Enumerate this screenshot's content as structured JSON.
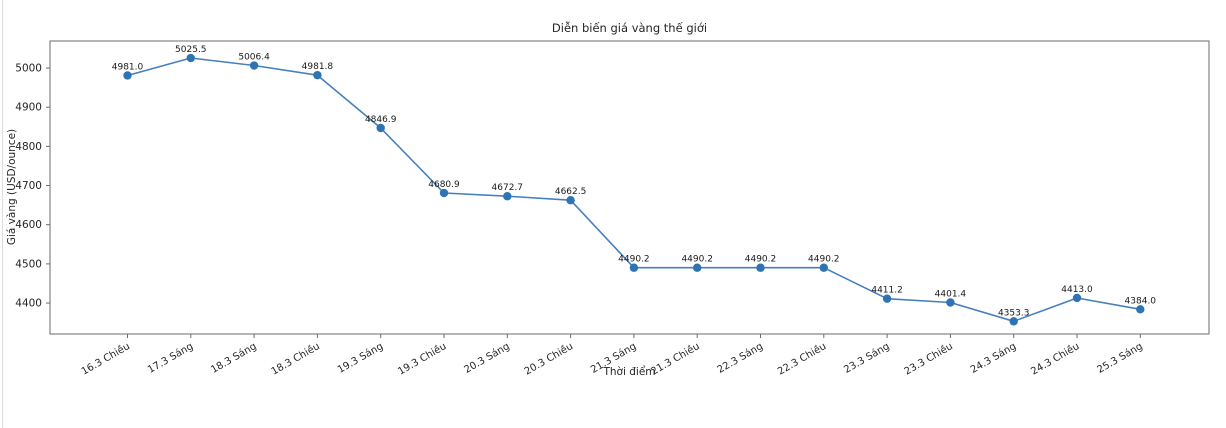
{
  "chart_data": {
    "type": "line",
    "title": "Diễn biến giá vàng thế giới",
    "xlabel": "Thời điểm",
    "ylabel": "Giá vàng (USD/ounce)",
    "categories": [
      "16.3 Chiều",
      "17.3 Sáng",
      "18.3 Sáng",
      "18.3 Chiều",
      "19.3 Sáng",
      "19.3 Chiều",
      "20.3 Sáng",
      "20.3 Chiều",
      "21.3 Sáng",
      "21.3 Chiều",
      "22.3 Sáng",
      "22.3 Chiều",
      "23.3 Sáng",
      "23.3 Chiều",
      "24.3 Sáng",
      "24.3 Chiều",
      "25.3 Sáng"
    ],
    "values": [
      4981.0,
      5025.5,
      5006.4,
      4981.8,
      4846.9,
      4680.9,
      4672.7,
      4662.5,
      4490.2,
      4490.2,
      4490.2,
      4490.2,
      4411.2,
      4401.4,
      4353.3,
      4413.0,
      4384.0
    ],
    "point_labels": [
      "4981.0",
      "5025.5",
      "5006.4",
      "4981.8",
      "4846.9",
      "4680.9",
      "4672.7",
      "4662.5",
      "4490.2",
      "4490.2",
      "4490.2",
      "4490.2",
      "4411.2",
      "4401.4",
      "4353.3",
      "4413.0",
      "4384.0"
    ],
    "yticks": [
      4400,
      4500,
      4600,
      4700,
      4800,
      4900,
      5000
    ],
    "ylim": [
      4321,
      5069
    ],
    "xtick_rotation_deg": 30,
    "grid": false,
    "legend_position": "none",
    "line_color": "#4580bd",
    "marker_color": "#2f74b2",
    "label_text_color": "#1a1a1a",
    "tick_text_color": "#262626",
    "spine_color": "#6b6b6b"
  }
}
